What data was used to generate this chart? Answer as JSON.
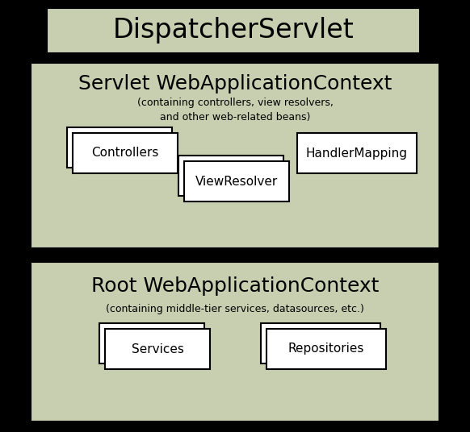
{
  "bg_color": "#000000",
  "panel_bg": "#c8cfb0",
  "box_bg": "#ffffff",
  "box_edge": "#000000",
  "text_color": "#000000",
  "dispatcher_text": "DispatcherServlet",
  "servlet_context_title": "Servlet WebApplicationContext",
  "servlet_context_sub": "(containing controllers, view resolvers,\nand other web-related beans)",
  "root_context_title": "Root WebApplicationContext",
  "root_context_sub": "(containing middle-tier services, datasources, etc.)",
  "boxes": {
    "controllers": "Controllers",
    "view_resolver": "ViewResolver",
    "handler_mapping": "HandlerMapping",
    "services": "Services",
    "repositories": "Repositories"
  },
  "figsize": [
    5.82,
    5.36
  ],
  "dpi": 100
}
